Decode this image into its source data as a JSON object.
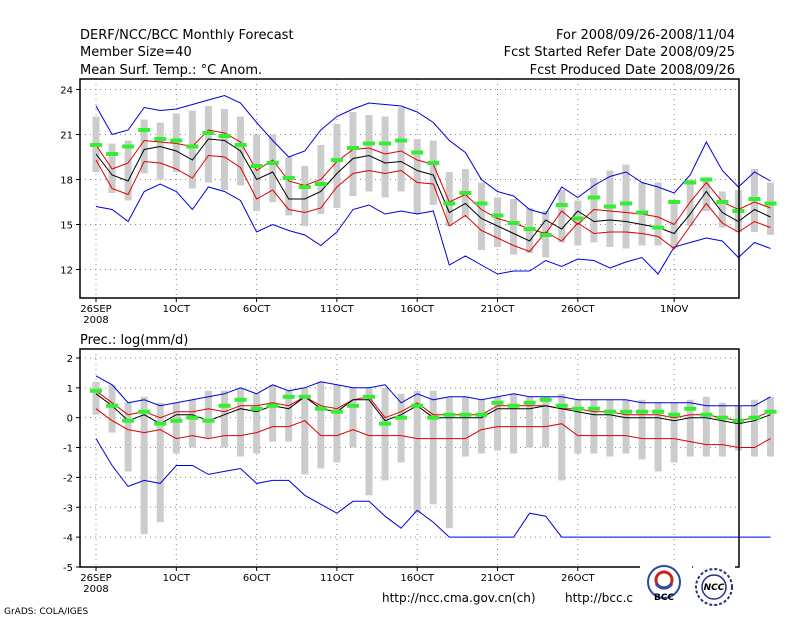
{
  "header": {
    "title": "DERF/NCC/BCC Monthly Forecast",
    "member_size": "Member Size=40",
    "variable": "Mean Surf. Temp.: °C Anom.",
    "forecast_for": "For 2008/09/26-2008/11/04",
    "started": "Fcst Started Refer Date 2008/09/25",
    "produced": "Fcst Produced Date 2008/09/26"
  },
  "footer": {
    "grads": "GrADS: COLA/IGES",
    "url1": "http://ncc.cma.gov.cn(ch)",
    "url2": "http://bcc.c",
    "logo1": "BCC",
    "logo2": "NCC"
  },
  "colors": {
    "median": "#000000",
    "inner": "#dd0000",
    "outer": "#0000dd",
    "bar": "#cccccc",
    "mean": "#33ee33"
  },
  "chart_data": [
    {
      "type": "line",
      "title": "Mean Surf. Temp.: °C Anom.",
      "year_label": "2008",
      "x_tick_labels": [
        "26SEP",
        "1OCT",
        "6OCT",
        "11OCT",
        "16OCT",
        "21OCT",
        "26OCT",
        "1NOV"
      ],
      "x_tick_days": [
        1,
        6,
        11,
        16,
        21,
        26,
        31,
        37
      ],
      "y_ticks": [
        12,
        15,
        18,
        21,
        24
      ],
      "ylim": [
        10.1,
        24.7
      ],
      "days": 40,
      "series": [
        {
          "name": "upper_outer",
          "values": [
            22.9,
            21.0,
            21.3,
            22.8,
            22.6,
            22.7,
            23.0,
            23.3,
            23.6,
            23.1,
            21.8,
            20.6,
            19.5,
            19.9,
            21.3,
            22.2,
            22.7,
            23.1,
            23.0,
            22.9,
            22.5,
            21.8,
            20.6,
            19.8,
            18.0,
            17.2,
            16.9,
            16.0,
            15.7,
            17.5,
            16.8,
            17.6,
            18.2,
            18.5,
            17.8,
            17.5,
            17.1,
            18.3,
            20.5,
            18.6,
            17.5,
            18.5,
            17.9
          ]
        },
        {
          "name": "upper_inner",
          "values": [
            20.3,
            18.7,
            19.1,
            20.6,
            20.5,
            20.4,
            20.2,
            21.3,
            21.1,
            20.5,
            18.6,
            19.3,
            17.9,
            17.6,
            18.0,
            19.2,
            20.0,
            20.1,
            19.7,
            19.9,
            19.3,
            19.0,
            16.5,
            17.0,
            16.0,
            15.4,
            15.1,
            14.7,
            14.4,
            15.9,
            15.0,
            16.0,
            15.9,
            15.8,
            15.7,
            15.5,
            15.0,
            16.5,
            17.8,
            16.5,
            16.0,
            16.5,
            16.1
          ]
        },
        {
          "name": "median",
          "values": [
            19.7,
            18.3,
            17.9,
            20.0,
            20.2,
            19.9,
            19.3,
            20.7,
            20.6,
            19.9,
            18.0,
            18.5,
            16.7,
            16.7,
            17.2,
            18.4,
            19.4,
            19.6,
            19.1,
            19.2,
            18.6,
            18.3,
            15.8,
            16.4,
            15.4,
            14.9,
            14.4,
            13.9,
            15.3,
            14.7,
            15.9,
            15.2,
            15.3,
            15.2,
            15.0,
            14.8,
            14.4,
            15.7,
            17.2,
            15.8,
            15.2,
            16.0,
            15.5
          ]
        },
        {
          "name": "lower_inner",
          "values": [
            19.3,
            17.4,
            17.0,
            19.2,
            19.1,
            18.7,
            18.1,
            19.6,
            19.5,
            18.8,
            16.7,
            17.3,
            16.0,
            15.8,
            16.1,
            17.5,
            18.4,
            18.6,
            18.4,
            18.6,
            17.8,
            17.7,
            14.9,
            15.6,
            14.6,
            14.1,
            13.6,
            13.2,
            14.5,
            13.9,
            15.1,
            14.4,
            14.5,
            14.5,
            14.4,
            14.2,
            13.4,
            14.9,
            16.4,
            15.1,
            14.5,
            15.2,
            14.8
          ]
        },
        {
          "name": "lower_outer",
          "values": [
            16.2,
            16.0,
            15.2,
            17.2,
            17.7,
            17.2,
            16.0,
            17.5,
            17.2,
            16.6,
            14.5,
            15.0,
            14.6,
            14.3,
            13.6,
            14.5,
            16.0,
            16.3,
            15.7,
            15.9,
            15.7,
            15.9,
            12.3,
            12.9,
            12.3,
            11.7,
            11.9,
            11.9,
            12.6,
            12.2,
            12.7,
            12.6,
            12.1,
            12.5,
            12.8,
            11.7,
            13.5,
            13.8,
            14.1,
            13.9,
            12.8,
            13.8,
            13.4
          ]
        },
        {
          "name": "mean",
          "values": [
            20.3,
            19.7,
            20.2,
            21.3,
            20.7,
            20.6,
            20.2,
            21.1,
            20.9,
            20.3,
            18.9,
            19.1,
            18.1,
            17.5,
            17.7,
            19.3,
            20.1,
            20.4,
            20.4,
            20.6,
            19.8,
            19.1,
            16.4,
            17.1,
            16.4,
            15.6,
            15.1,
            14.7,
            14.3,
            16.3,
            15.4,
            16.8,
            16.2,
            16.4,
            15.8,
            14.8,
            16.5,
            17.8,
            18.0,
            16.5,
            15.9,
            16.7,
            16.4
          ]
        },
        {
          "name": "bar_max",
          "values": [
            22.2,
            20.4,
            20.6,
            22.0,
            21.8,
            22.4,
            22.6,
            22.9,
            22.7,
            22.2,
            21.0,
            21.0,
            19.5,
            18.9,
            20.3,
            21.7,
            22.5,
            22.3,
            22.2,
            22.8,
            20.7,
            20.6,
            18.5,
            18.7,
            17.8,
            16.8,
            16.7,
            16.1,
            15.9,
            17.3,
            16.6,
            18.1,
            18.6,
            19.0,
            17.8,
            17.8,
            16.5,
            18.0,
            18.0,
            17.2,
            17.3,
            18.7,
            17.8
          ]
        },
        {
          "name": "bar_min",
          "values": [
            18.5,
            17.1,
            16.6,
            18.4,
            18.0,
            18.5,
            17.4,
            17.8,
            17.3,
            17.6,
            15.9,
            16.5,
            15.6,
            14.9,
            15.7,
            16.1,
            16.9,
            17.2,
            16.8,
            17.2,
            15.7,
            16.3,
            14.9,
            15.5,
            13.3,
            13.5,
            13.0,
            13.1,
            12.8,
            13.8,
            13.6,
            13.8,
            13.5,
            13.4,
            13.6,
            13.6,
            13.4,
            14.9,
            15.9,
            14.8,
            14.5,
            14.5,
            14.3
          ]
        }
      ]
    },
    {
      "type": "line",
      "title": "Prec.: log(mm/d)",
      "year_label": "2008",
      "x_tick_labels": [
        "26SEP",
        "1OCT",
        "6OCT",
        "11OCT",
        "16OCT",
        "21OCT",
        "26OCT",
        "1NOV"
      ],
      "x_tick_days": [
        1,
        6,
        11,
        16,
        21,
        26,
        31,
        37
      ],
      "y_ticks": [
        -5,
        -4,
        -3,
        -2,
        -1,
        0,
        1,
        2
      ],
      "ylim": [
        -5,
        2.3
      ],
      "days": 40,
      "series": [
        {
          "name": "upper_outer",
          "values": [
            1.4,
            1.1,
            0.5,
            0.6,
            0.4,
            0.5,
            0.6,
            0.7,
            0.8,
            1.0,
            0.8,
            1.1,
            0.9,
            1.0,
            1.2,
            1.1,
            1.0,
            1.0,
            1.1,
            0.5,
            0.8,
            0.6,
            0.7,
            0.7,
            0.6,
            0.7,
            0.8,
            0.7,
            0.7,
            0.7,
            0.6,
            0.6,
            0.6,
            0.6,
            0.5,
            0.5,
            0.5,
            0.5,
            0.4,
            0.4,
            0.4,
            0.4,
            0.7
          ]
        },
        {
          "name": "upper_inner",
          "values": [
            0.9,
            0.5,
            0.1,
            0.2,
            0.0,
            0.2,
            0.2,
            0.3,
            0.2,
            0.4,
            0.4,
            0.5,
            0.4,
            0.7,
            0.4,
            0.3,
            0.6,
            0.7,
            0.0,
            0.2,
            0.5,
            0.1,
            0.1,
            0.1,
            0.1,
            0.4,
            0.4,
            0.4,
            0.4,
            0.3,
            0.3,
            0.2,
            0.2,
            0.1,
            0.1,
            0.1,
            0.0,
            0.1,
            0.1,
            0.0,
            -0.1,
            0.0,
            0.2
          ]
        },
        {
          "name": "median",
          "values": [
            0.8,
            0.4,
            -0.1,
            0.1,
            -0.2,
            0.1,
            0.1,
            -0.1,
            0.1,
            0.3,
            0.2,
            0.4,
            0.3,
            0.7,
            0.3,
            0.2,
            0.6,
            0.6,
            -0.1,
            0.1,
            0.4,
            0.0,
            0.0,
            0.0,
            0.0,
            0.3,
            0.3,
            0.3,
            0.4,
            0.3,
            0.2,
            0.1,
            0.1,
            0.0,
            0.0,
            0.0,
            -0.1,
            0.0,
            0.0,
            -0.1,
            -0.2,
            -0.1,
            0.1
          ]
        },
        {
          "name": "lower_inner",
          "values": [
            0.3,
            -0.1,
            -0.4,
            -0.5,
            -0.4,
            -0.7,
            -0.6,
            -0.7,
            -0.6,
            -0.6,
            -0.5,
            -0.3,
            -0.3,
            -0.1,
            -0.6,
            -0.6,
            -0.4,
            -0.6,
            -0.6,
            -0.6,
            -0.7,
            -0.7,
            -0.7,
            -0.7,
            -0.4,
            -0.3,
            -0.3,
            -0.3,
            -0.3,
            -0.2,
            -0.6,
            -0.6,
            -0.6,
            -0.6,
            -0.7,
            -0.7,
            -0.7,
            -0.8,
            -0.9,
            -0.9,
            -1.0,
            -1.0,
            -0.7
          ]
        },
        {
          "name": "lower_outer",
          "values": [
            -0.7,
            -1.6,
            -2.3,
            -2.1,
            -2.2,
            -1.6,
            -1.6,
            -1.9,
            -1.8,
            -1.7,
            -2.2,
            -2.1,
            -2.1,
            -2.6,
            -2.9,
            -3.2,
            -2.8,
            -2.8,
            -3.3,
            -3.7,
            -3.1,
            -3.5,
            -4.0,
            -4.0,
            -4.0,
            -4.0,
            -4.0,
            -3.2,
            -3.3,
            -4.0,
            -4.0,
            -4.0,
            -4.0,
            -4.0,
            -4.0,
            -4.0,
            -4.0,
            -4.0,
            -4.0,
            -4.0,
            -4.0,
            -4.0,
            -4.0
          ]
        },
        {
          "name": "mean",
          "values": [
            0.9,
            0.4,
            -0.1,
            0.2,
            -0.2,
            -0.1,
            0.0,
            -0.1,
            0.4,
            0.6,
            0.3,
            0.4,
            0.7,
            0.7,
            0.3,
            0.2,
            0.4,
            0.7,
            -0.2,
            0.0,
            0.4,
            0.0,
            0.1,
            0.1,
            0.1,
            0.5,
            0.4,
            0.5,
            0.6,
            0.4,
            0.3,
            0.3,
            0.2,
            0.2,
            0.2,
            0.2,
            0.1,
            0.3,
            0.1,
            0.0,
            -0.1,
            0.0,
            0.2
          ]
        },
        {
          "name": "bar_max",
          "values": [
            1.2,
            1.1,
            0.5,
            0.7,
            0.5,
            0.5,
            0.6,
            0.9,
            0.9,
            1.0,
            0.8,
            1.1,
            0.9,
            1.0,
            1.2,
            1.1,
            1.0,
            1.0,
            1.0,
            0.8,
            0.9,
            0.9,
            0.7,
            0.7,
            0.6,
            0.7,
            0.8,
            0.7,
            0.7,
            0.8,
            0.6,
            0.6,
            0.6,
            0.6,
            0.6,
            0.5,
            0.5,
            0.6,
            0.7,
            0.5,
            0.4,
            0.6,
            0.7
          ]
        },
        {
          "name": "bar_min",
          "values": [
            0.1,
            -0.5,
            -1.8,
            -3.9,
            -3.5,
            -1.2,
            -1.0,
            -0.7,
            -1.0,
            -1.3,
            -1.2,
            -0.8,
            -0.8,
            -1.9,
            -1.7,
            -1.5,
            -1.0,
            -2.6,
            -2.1,
            -1.5,
            -3.2,
            -2.9,
            -3.7,
            -1.3,
            -1.2,
            -1.1,
            -1.2,
            -1.0,
            -1.0,
            -2.1,
            -1.2,
            -1.2,
            -1.3,
            -1.2,
            -1.4,
            -1.8,
            -1.5,
            -1.3,
            -1.3,
            -1.3,
            -1.1,
            -1.3,
            -1.3
          ]
        }
      ]
    }
  ]
}
